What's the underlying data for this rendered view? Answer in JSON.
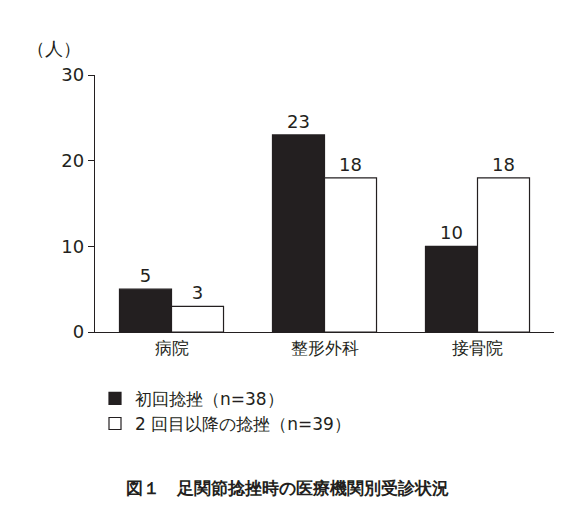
{
  "chart_data": {
    "type": "bar",
    "title": "図１　足関節捻挫時の医療機関別受診状況",
    "ylabel": "（人）",
    "categories": [
      "病院",
      "整形外科",
      "接骨院"
    ],
    "series": [
      {
        "name": "初回捻挫（n=38）",
        "color": "#231f20",
        "values": [
          5,
          23,
          10
        ]
      },
      {
        "name": "2 回目以降の捻挫（n=39）",
        "color": "#ffffff",
        "values": [
          3,
          18,
          18
        ]
      }
    ],
    "ylim": [
      0,
      30
    ],
    "yticks": [
      0,
      10,
      20,
      30
    ],
    "grid": false,
    "legend": "bottom",
    "data_labels": true
  }
}
